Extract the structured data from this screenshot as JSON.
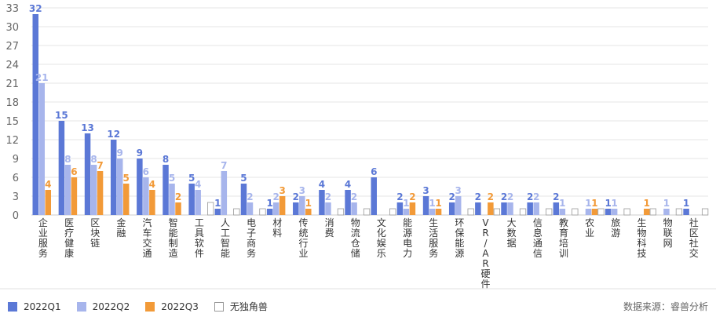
{
  "chart_data": {
    "type": "bar",
    "categories": [
      "企业服务",
      "医疗健康",
      "区块链",
      "金融",
      "汽车交通",
      "智能制造",
      "工具软件",
      "人工智能",
      "电子商务",
      "材料",
      "传统行业",
      "消费",
      "物流仓储",
      "文化娱乐",
      "能源电力",
      "生活服务",
      "环保能源",
      "VR/AR硬件",
      "大数据",
      "信息通信",
      "教育培训",
      "农业",
      "旅游",
      "生物科技",
      "物联网",
      "社区社交"
    ],
    "series": [
      {
        "name": "2022Q1",
        "color": "#5B78D6",
        "values": [
          32,
          15,
          13,
          12,
          9,
          8,
          5,
          1,
          5,
          1,
          2,
          4,
          4,
          6,
          2,
          3,
          2,
          2,
          2,
          2,
          2,
          0,
          1,
          0,
          0,
          1
        ]
      },
      {
        "name": "2022Q2",
        "color": "#A7B5EC",
        "values": [
          21,
          8,
          8,
          9,
          6,
          5,
          4,
          7,
          2,
          2,
          3,
          2,
          2,
          0,
          1,
          1,
          3,
          0,
          2,
          2,
          1,
          1,
          1,
          0,
          1,
          0
        ]
      },
      {
        "name": "2022Q3",
        "color": "#F29A38",
        "values": [
          4,
          6,
          7,
          5,
          4,
          2,
          0,
          0,
          0,
          3,
          1,
          0,
          0,
          0,
          2,
          1,
          0,
          2,
          0,
          0,
          0,
          1,
          0,
          1,
          0,
          0
        ]
      },
      {
        "name": "无独角兽",
        "color": "#ffffff",
        "values": [
          0,
          0,
          0,
          0,
          0,
          0,
          2,
          1,
          1,
          0,
          0,
          1,
          1,
          1,
          0,
          0,
          1,
          1,
          1,
          1,
          1,
          1,
          1,
          1,
          1,
          1
        ]
      }
    ],
    "labels": [
      [
        "32",
        "21",
        "4",
        ""
      ],
      [
        "15",
        "8",
        "6",
        ""
      ],
      [
        "13",
        "8",
        "7",
        ""
      ],
      [
        "12",
        "9",
        "5",
        ""
      ],
      [
        "9",
        "6",
        "4",
        ""
      ],
      [
        "8",
        "5",
        "2",
        ""
      ],
      [
        "5",
        "4",
        "",
        ""
      ],
      [
        "1",
        "7",
        "",
        ""
      ],
      [
        "5",
        "2",
        "",
        ""
      ],
      [
        "1",
        "2",
        "3",
        ""
      ],
      [
        "2",
        "3",
        "1",
        ""
      ],
      [
        "4",
        "2",
        "",
        ""
      ],
      [
        "4",
        "2",
        "",
        ""
      ],
      [
        "6",
        "",
        "",
        ""
      ],
      [
        "2",
        "1",
        "2",
        ""
      ],
      [
        "3",
        "1",
        "1",
        ""
      ],
      [
        "2",
        "3",
        "",
        ""
      ],
      [
        "2",
        "",
        "2",
        ""
      ],
      [
        "2",
        "2",
        "",
        ""
      ],
      [
        "2",
        "2",
        "",
        ""
      ],
      [
        "2",
        "1",
        "",
        ""
      ],
      [
        "",
        "1",
        "1",
        ""
      ],
      [
        "1",
        "1",
        "",
        ""
      ],
      [
        "",
        "",
        "1",
        ""
      ],
      [
        "",
        "1",
        "",
        ""
      ],
      [
        "1",
        "",
        "",
        ""
      ]
    ],
    "yticks": [
      0,
      3,
      6,
      9,
      12,
      15,
      18,
      21,
      24,
      27,
      30,
      33
    ],
    "ylim": [
      0,
      33
    ],
    "source": "数据来源：睿兽分析"
  }
}
